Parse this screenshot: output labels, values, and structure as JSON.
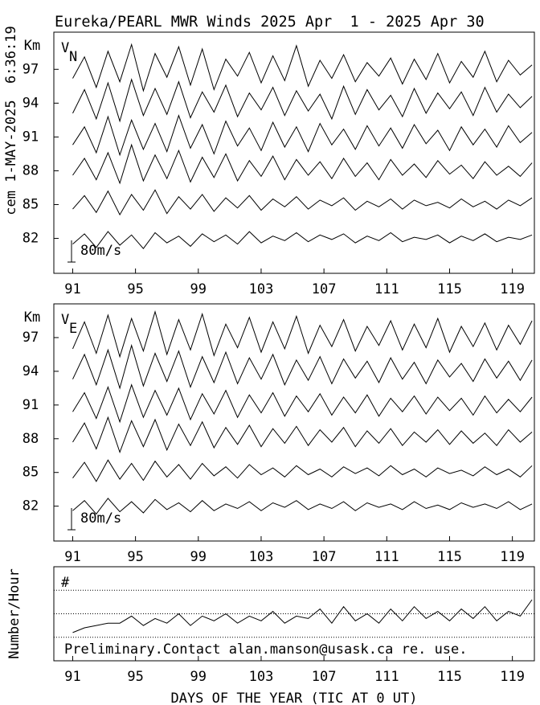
{
  "side_label": "cem 1-MAY-2025  6:36:19",
  "chart_data": [
    {
      "type": "line",
      "title": "Eureka/PEARL MWR Winds 2025 Apr  1 - 2025 Apr 30",
      "ylabel": "Km",
      "panel_label": "V",
      "panel_subscript": "N",
      "scale_label": "80m/s",
      "xlim": [
        89.8,
        120.4
      ],
      "xticks": [
        91,
        95,
        99,
        103,
        107,
        111,
        115,
        119
      ],
      "ylim": [
        78.9,
        100.3
      ],
      "yticks": [
        82,
        85,
        88,
        91,
        94,
        97
      ],
      "x": [
        91,
        91.75,
        92.5,
        93.25,
        94,
        94.75,
        95.5,
        96.25,
        97,
        97.75,
        98.5,
        99.25,
        100,
        100.75,
        101.5,
        102.25,
        103,
        103.75,
        104.5,
        105.25,
        106,
        106.75,
        107.5,
        108.25,
        109,
        109.75,
        110.5,
        111.25,
        112,
        112.75,
        113.5,
        114.25,
        115,
        115.75,
        116.5,
        117.25,
        118,
        118.75,
        119.5,
        120.25
      ],
      "series": [
        {
          "color": "#000000",
          "values": [
            96.2,
            98.1,
            95.4,
            98.6,
            95.9,
            99.2,
            95.1,
            98.4,
            96.3,
            99.0,
            95.6,
            98.8,
            95.2,
            97.9,
            96.4,
            98.5,
            95.8,
            98.2,
            96.0,
            99.1,
            95.5,
            97.8,
            96.2,
            98.3,
            95.9,
            97.6,
            96.4,
            98.0,
            95.7,
            97.9,
            96.1,
            98.4,
            95.8,
            97.7,
            96.3,
            98.6,
            95.9,
            97.8,
            96.5,
            97.4
          ]
        },
        {
          "color": "#000000",
          "values": [
            93.1,
            95.2,
            92.6,
            95.8,
            92.4,
            96.1,
            92.9,
            95.3,
            93.0,
            95.9,
            92.7,
            95.0,
            93.2,
            95.6,
            92.8,
            94.9,
            93.4,
            95.4,
            92.9,
            95.1,
            93.3,
            94.8,
            92.6,
            95.5,
            93.0,
            95.2,
            93.4,
            94.7,
            92.8,
            95.3,
            93.1,
            94.9,
            93.5,
            95.0,
            92.9,
            95.4,
            93.2,
            94.8,
            93.6,
            94.6
          ]
        },
        {
          "color": "#000000",
          "values": [
            90.3,
            91.9,
            89.6,
            92.8,
            89.4,
            92.5,
            89.9,
            92.2,
            89.7,
            92.9,
            90.0,
            92.1,
            89.5,
            92.4,
            90.2,
            91.8,
            89.8,
            92.3,
            90.1,
            91.9,
            89.7,
            92.2,
            90.3,
            91.7,
            89.9,
            92.0,
            90.2,
            91.8,
            90.0,
            92.1,
            90.4,
            91.6,
            89.8,
            91.9,
            90.3,
            91.7,
            90.1,
            92.0,
            90.5,
            91.4
          ]
        },
        {
          "color": "#000000",
          "values": [
            87.6,
            89.1,
            87.2,
            89.6,
            86.9,
            90.3,
            87.1,
            89.4,
            87.3,
            89.8,
            87.0,
            89.2,
            87.4,
            89.5,
            87.1,
            88.9,
            87.5,
            89.3,
            87.2,
            89.0,
            87.6,
            88.8,
            87.3,
            89.1,
            87.5,
            88.7,
            87.2,
            89.0,
            87.6,
            88.6,
            87.4,
            88.9,
            87.7,
            88.5,
            87.3,
            88.8,
            87.6,
            88.4,
            87.5,
            88.7
          ]
        },
        {
          "color": "#000000",
          "values": [
            84.6,
            85.8,
            84.3,
            86.2,
            84.1,
            85.9,
            84.5,
            86.3,
            84.2,
            85.7,
            84.6,
            85.9,
            84.4,
            85.6,
            84.7,
            85.8,
            84.5,
            85.5,
            84.8,
            85.7,
            84.6,
            85.4,
            84.9,
            85.6,
            84.5,
            85.3,
            84.8,
            85.5,
            84.6,
            85.4,
            84.9,
            85.2,
            84.7,
            85.5,
            84.8,
            85.3,
            84.6,
            85.4,
            84.9,
            85.6
          ]
        },
        {
          "color": "#000000",
          "values": [
            81.5,
            82.4,
            81.2,
            82.6,
            81.4,
            82.3,
            81.1,
            82.5,
            81.6,
            82.2,
            81.3,
            82.4,
            81.7,
            82.3,
            81.5,
            82.6,
            81.6,
            82.2,
            81.8,
            82.5,
            81.7,
            82.3,
            81.9,
            82.4,
            81.6,
            82.2,
            81.8,
            82.5,
            81.7,
            82.1,
            81.9,
            82.3,
            81.6,
            82.2,
            81.8,
            82.4,
            81.7,
            82.1,
            81.9,
            82.3
          ]
        }
      ]
    },
    {
      "type": "line",
      "ylabel": "Km",
      "panel_label": "V",
      "panel_subscript": "E",
      "scale_label": "80m/s",
      "xlim": [
        89.8,
        120.4
      ],
      "xticks": [
        91,
        95,
        99,
        103,
        107,
        111,
        115,
        119
      ],
      "ylim": [
        78.9,
        100.0
      ],
      "yticks": [
        82,
        85,
        88,
        91,
        94,
        97
      ],
      "x": [
        91,
        91.75,
        92.5,
        93.25,
        94,
        94.75,
        95.5,
        96.25,
        97,
        97.75,
        98.5,
        99.25,
        100,
        100.75,
        101.5,
        102.25,
        103,
        103.75,
        104.5,
        105.25,
        106,
        106.75,
        107.5,
        108.25,
        109,
        109.75,
        110.5,
        111.25,
        112,
        112.75,
        113.5,
        114.25,
        115,
        115.75,
        116.5,
        117.25,
        118,
        118.75,
        119.5,
        120.25
      ],
      "series": [
        {
          "color": "#000000",
          "values": [
            96.0,
            98.4,
            95.6,
            99.0,
            95.3,
            98.7,
            95.8,
            99.3,
            95.5,
            98.6,
            95.9,
            99.1,
            95.4,
            98.2,
            96.1,
            98.8,
            95.7,
            98.4,
            96.0,
            98.9,
            95.6,
            98.1,
            96.2,
            98.6,
            95.8,
            98.0,
            96.3,
            98.5,
            95.9,
            98.2,
            96.1,
            98.7,
            95.7,
            98.0,
            96.2,
            98.3,
            95.9,
            98.1,
            96.4,
            98.5
          ]
        },
        {
          "color": "#000000",
          "values": [
            93.3,
            95.5,
            92.8,
            95.9,
            92.5,
            96.3,
            92.7,
            95.6,
            93.1,
            95.8,
            92.6,
            95.3,
            93.0,
            95.7,
            92.9,
            95.2,
            93.3,
            95.5,
            92.8,
            95.0,
            93.2,
            95.3,
            92.9,
            95.1,
            93.4,
            94.9,
            93.0,
            95.2,
            93.3,
            94.8,
            92.9,
            95.0,
            93.5,
            94.7,
            93.1,
            95.1,
            93.4,
            94.9,
            93.2,
            95.0
          ]
        },
        {
          "color": "#000000",
          "values": [
            90.4,
            92.1,
            89.8,
            92.6,
            89.5,
            92.8,
            89.9,
            92.3,
            90.1,
            92.5,
            89.7,
            92.0,
            90.2,
            92.3,
            89.9,
            91.9,
            90.3,
            92.1,
            90.0,
            91.8,
            90.4,
            92.0,
            90.1,
            91.7,
            90.3,
            91.9,
            90.0,
            91.6,
            90.4,
            91.8,
            90.2,
            91.7,
            90.5,
            91.6,
            90.1,
            91.8,
            90.3,
            91.5,
            90.4,
            91.7
          ]
        },
        {
          "color": "#000000",
          "values": [
            87.7,
            89.4,
            87.1,
            89.9,
            86.8,
            89.6,
            87.3,
            89.7,
            87.0,
            89.3,
            87.4,
            89.5,
            87.2,
            89.0,
            87.5,
            89.2,
            87.3,
            88.9,
            87.6,
            89.1,
            87.4,
            88.8,
            87.7,
            89.0,
            87.3,
            88.7,
            87.6,
            88.9,
            87.4,
            88.6,
            87.7,
            88.8,
            87.5,
            88.7,
            87.6,
            88.5,
            87.4,
            88.8,
            87.7,
            88.6
          ]
        },
        {
          "color": "#000000",
          "values": [
            84.5,
            85.9,
            84.2,
            86.1,
            84.4,
            85.8,
            84.3,
            86.0,
            84.6,
            85.7,
            84.4,
            85.8,
            84.7,
            85.5,
            84.5,
            85.7,
            84.8,
            85.4,
            84.6,
            85.6,
            84.8,
            85.3,
            84.6,
            85.5,
            84.9,
            85.4,
            84.7,
            85.6,
            84.8,
            85.3,
            84.6,
            85.4,
            84.9,
            85.2,
            84.7,
            85.5,
            84.8,
            85.3,
            84.6,
            85.6
          ]
        },
        {
          "color": "#000000",
          "values": [
            81.6,
            82.5,
            81.3,
            82.7,
            81.5,
            82.4,
            81.4,
            82.6,
            81.7,
            82.3,
            81.5,
            82.5,
            81.6,
            82.2,
            81.8,
            82.4,
            81.6,
            82.3,
            81.9,
            82.5,
            81.7,
            82.2,
            81.8,
            82.4,
            81.6,
            82.3,
            81.9,
            82.2,
            81.7,
            82.4,
            81.8,
            82.1,
            81.7,
            82.3,
            81.9,
            82.2,
            81.8,
            82.4,
            81.7,
            82.2
          ]
        }
      ]
    },
    {
      "type": "line",
      "ylabel": "Number/Hour",
      "panel_label": "#",
      "annotation": "Preliminary.Contact alan.manson@usask.ca re. use.",
      "xlabel": "DAYS OF THE YEAR (TIC AT 0 UT)",
      "xlim": [
        89.8,
        120.4
      ],
      "xticks": [
        91,
        95,
        99,
        103,
        107,
        111,
        115,
        119
      ],
      "ylim": [
        0,
        4
      ],
      "grid_levels": [
        1,
        2,
        3
      ],
      "x": [
        91,
        91.75,
        92.5,
        93.25,
        94,
        94.75,
        95.5,
        96.25,
        97,
        97.75,
        98.5,
        99.25,
        100,
        100.75,
        101.5,
        102.25,
        103,
        103.75,
        104.5,
        105.25,
        106,
        106.75,
        107.5,
        108.25,
        109,
        109.75,
        110.5,
        111.25,
        112,
        112.75,
        113.5,
        114.25,
        115,
        115.75,
        116.5,
        117.25,
        118,
        118.75,
        119.5,
        120.25
      ],
      "series": [
        {
          "color": "#000000",
          "values": [
            1.2,
            1.4,
            1.5,
            1.6,
            1.6,
            1.9,
            1.5,
            1.8,
            1.6,
            2.0,
            1.5,
            1.9,
            1.7,
            2.0,
            1.6,
            1.9,
            1.7,
            2.1,
            1.6,
            1.9,
            1.8,
            2.2,
            1.6,
            2.3,
            1.7,
            2.0,
            1.6,
            2.2,
            1.7,
            2.3,
            1.8,
            2.1,
            1.7,
            2.2,
            1.8,
            2.3,
            1.7,
            2.1,
            1.9,
            2.6
          ]
        }
      ]
    }
  ]
}
